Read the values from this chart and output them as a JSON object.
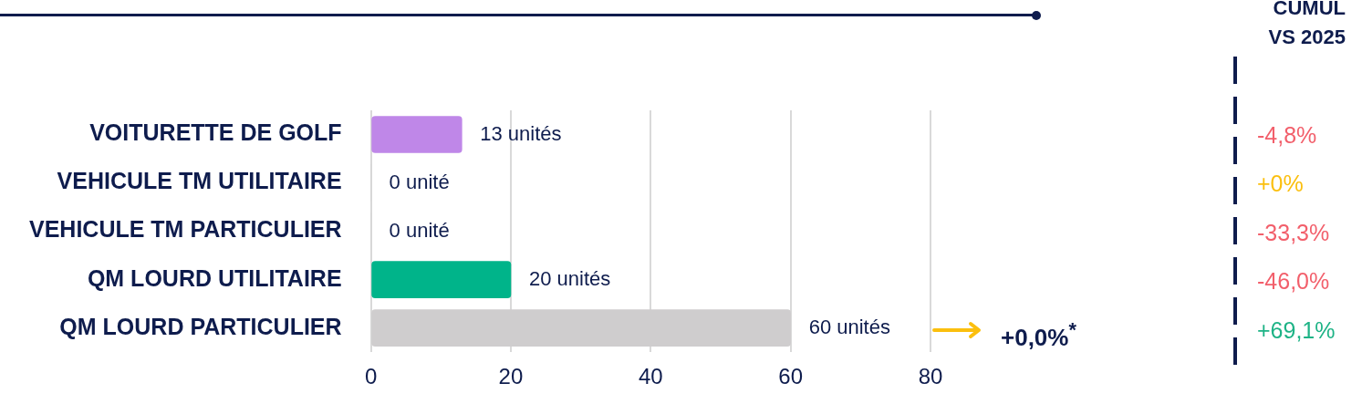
{
  "chart_data": [
    {
      "type": "bar",
      "orientation": "horizontal",
      "categories": [
        "VOITURETTE DE GOLF",
        "VEHICULE TM UTILITAIRE",
        "VEHICULE TM PARTICULIER",
        "QM LOURD UTILITAIRE",
        "QM LOURD PARTICULIER"
      ],
      "values": [
        13,
        0,
        0,
        20,
        60
      ],
      "colors": [
        "#bf87e8",
        "#cfcdce",
        "#cfcdce",
        "#00b48a",
        "#cfcdce"
      ],
      "value_labels": [
        "13 unités",
        "0 unité",
        "0 unité",
        "20 unités",
        "60 unités"
      ],
      "xlim": [
        0,
        80
      ],
      "xticks": [
        0,
        20,
        40,
        60,
        80
      ],
      "grid": "x",
      "annotations": [
        "+0,0%$^{*}$"
      ]
    },
    {
      "type": "other",
      "title": "CUMUL VS 2025",
      "annotations": [
        "-4,8%",
        "+0%",
        "-33,3%",
        "-46,0%",
        "+69,1%"
      ],
      "colors": [
        "#f25f6b",
        "#fbbf0e",
        "#f25f6b",
        "#f25f6b",
        "#1eb386"
      ]
    }
  ]
}
